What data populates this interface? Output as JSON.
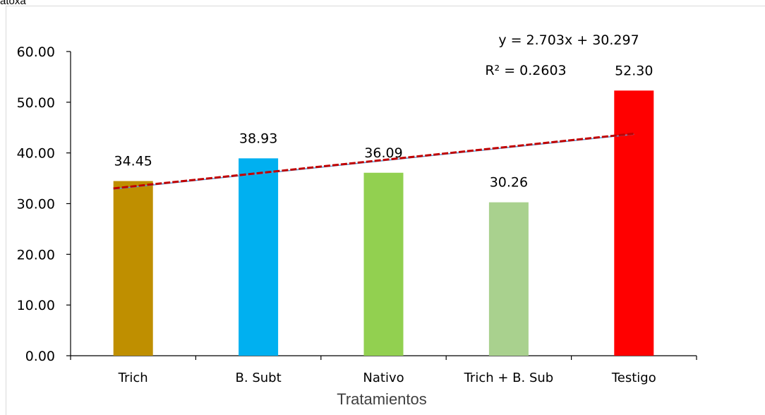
{
  "corner_text": "atoxa",
  "chart_data": {
    "type": "bar",
    "title": "",
    "xlabel": "Tratamientos",
    "ylabel": "",
    "ylim": [
      0,
      60
    ],
    "ytick_step": 10,
    "ytick_labels": [
      "0.00",
      "10.00",
      "20.00",
      "30.00",
      "40.00",
      "50.00",
      "60.00"
    ],
    "categories": [
      "Trich",
      "B. Subt",
      "Nativo",
      "Trich + B. Sub",
      "Testigo"
    ],
    "values": [
      34.45,
      38.93,
      36.09,
      30.26,
      52.3
    ],
    "data_labels": [
      "34.45",
      "38.93",
      "36.09",
      "30.26",
      "52.30"
    ],
    "bar_colors": [
      "#bf8f00",
      "#00b0f0",
      "#92d050",
      "#a9d18e",
      "#ff0000"
    ],
    "trendline": {
      "type": "linear",
      "slope": 2.703,
      "intercept": 30.297,
      "color": "#c00000",
      "equation": "y = 2.703x + 30.297",
      "r_squared": "R² = 0.2603"
    },
    "grid": false,
    "legend": "none"
  }
}
